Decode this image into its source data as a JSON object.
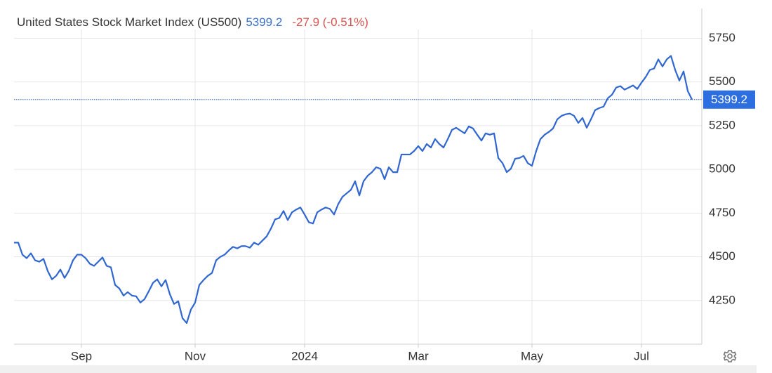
{
  "chart_data": {
    "type": "line",
    "title": "United States Stock Market Index (US500)",
    "change": "-27.9 (-0.51%)",
    "categories": [
      null,
      null,
      null,
      null,
      null,
      null,
      null,
      null,
      null,
      null,
      null,
      null,
      null,
      null,
      null,
      null,
      null,
      null,
      null,
      null,
      null,
      null,
      null,
      null,
      null,
      null,
      null,
      null,
      null,
      null,
      null,
      null,
      null,
      null,
      null,
      null,
      null,
      null,
      null,
      null,
      null,
      null,
      null,
      null,
      null,
      null,
      null,
      null,
      null,
      null,
      null,
      null,
      null,
      null,
      null,
      null,
      null,
      null,
      null,
      null,
      null,
      null,
      null,
      null,
      null,
      null,
      null,
      null,
      null,
      null,
      null,
      null,
      null,
      null,
      null,
      null,
      null,
      null,
      null,
      null,
      null,
      null,
      null,
      null,
      null,
      null,
      null,
      null,
      null,
      null,
      null,
      null,
      null,
      null,
      null,
      null,
      null,
      null,
      null,
      null,
      null,
      null,
      null,
      null,
      null,
      null,
      null,
      null,
      null,
      null,
      null,
      null,
      null,
      null,
      null,
      null,
      null,
      null,
      null,
      null,
      null,
      null,
      null,
      null,
      null,
      null,
      null,
      null,
      null,
      null,
      null,
      null,
      null,
      null,
      null,
      null,
      null,
      null,
      null,
      null,
      null,
      null,
      null,
      null,
      null,
      null,
      null,
      null,
      null,
      null,
      null,
      null,
      null,
      null,
      null,
      null,
      null,
      null,
      null,
      null,
      null,
      null
    ],
    "series": [
      {
        "name": "US500",
        "color": "#2f66d0",
        "values": [
          4581,
          4581,
          4512,
          4492,
          4520,
          4480,
          4472,
          4488,
          4419,
          4371,
          4391,
          4427,
          4379,
          4419,
          4480,
          4512,
          4512,
          4492,
          4460,
          4448,
          4472,
          4496,
          4448,
          4440,
          4339,
          4319,
          4278,
          4298,
          4278,
          4274,
          4238,
          4258,
          4303,
          4351,
          4371,
          4331,
          4367,
          4286,
          4230,
          4246,
          4149,
          4121,
          4198,
          4238,
          4339,
          4367,
          4391,
          4407,
          4480,
          4500,
          4512,
          4536,
          4557,
          4548,
          4561,
          4561,
          4552,
          4581,
          4569,
          4593,
          4617,
          4661,
          4714,
          4722,
          4762,
          4710,
          4754,
          4770,
          4782,
          4742,
          4698,
          4690,
          4754,
          4770,
          4782,
          4774,
          4742,
          4802,
          4843,
          4863,
          4883,
          4932,
          4851,
          4932,
          4964,
          4984,
          5012,
          5004,
          4944,
          5012,
          4984,
          4984,
          5085,
          5085,
          5085,
          5105,
          5133,
          5105,
          5145,
          5125,
          5173,
          5145,
          5125,
          5173,
          5226,
          5238,
          5222,
          5206,
          5246,
          5234,
          5198,
          5165,
          5206,
          5198,
          5206,
          5065,
          5036,
          4984,
          5004,
          5061,
          5065,
          5077,
          5036,
          5020,
          5105,
          5173,
          5198,
          5214,
          5234,
          5286,
          5306,
          5315,
          5319,
          5306,
          5266,
          5294,
          5238,
          5286,
          5339,
          5351,
          5359,
          5407,
          5427,
          5468,
          5476,
          5456,
          5468,
          5480,
          5460,
          5496,
          5528,
          5569,
          5577,
          5629,
          5589,
          5629,
          5649,
          5569,
          5508,
          5560,
          5448,
          5399.2
        ]
      }
    ],
    "ylim": [
      4000,
      5800
    ],
    "yticks": [
      4250,
      4500,
      4750,
      5000,
      5250,
      5500,
      5750
    ],
    "xticks": [
      {
        "value": 16,
        "label": "Sep"
      },
      {
        "value": 43,
        "label": "Nov"
      },
      {
        "value": 69,
        "label": "2024"
      },
      {
        "value": 96,
        "label": "Mar"
      },
      {
        "value": 123,
        "label": "May"
      },
      {
        "value": 149,
        "label": "Jul"
      }
    ],
    "grid": true
  }
}
